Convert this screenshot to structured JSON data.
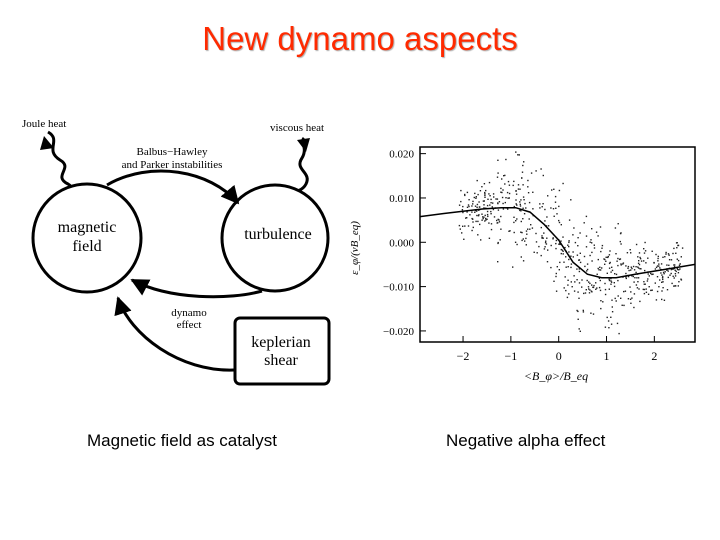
{
  "slide": {
    "title": "New dynamo aspects",
    "caption_left": "Magnetic field as catalyst",
    "caption_right": "Negative alpha effect"
  },
  "diagram": {
    "joule_heat": "Joule heat",
    "viscous_heat": "viscous heat",
    "instab_line1": "Balbus−Hawley",
    "instab_line2": "and Parker instabilities",
    "magnetic_line1": "magnetic",
    "magnetic_line2": "field",
    "turbulence": "turbulence",
    "dynamo_line1": "dynamo",
    "dynamo_line2": "effect",
    "keplerian_line1": "keplerian",
    "keplerian_line2": "shear"
  },
  "chart_data": {
    "type": "scatter",
    "xlabel": "<B_φ>/B_eq",
    "ylabel": "ε_φ/(vB_eq)",
    "xlim": [
      -2.9,
      2.85
    ],
    "ylim": [
      -0.0225,
      0.0215
    ],
    "x_ticks": [
      "−2",
      "−1",
      "0",
      "1",
      "2"
    ],
    "x_tick_values": [
      -2,
      -1,
      0,
      1,
      2
    ],
    "y_ticks": [
      "0.020",
      "0.010",
      "0.000",
      "−0.010",
      "−0.020"
    ],
    "y_tick_values": [
      0.02,
      0.01,
      0.0,
      -0.01,
      -0.02
    ],
    "fit_curve": {
      "x": [
        -2.9,
        -2.4,
        -2.0,
        -1.6,
        -1.2,
        -0.9,
        -0.6,
        -0.3,
        0.0,
        0.3,
        0.6,
        0.9,
        1.2,
        1.6,
        2.0,
        2.4,
        2.85
      ],
      "y": [
        0.0058,
        0.0065,
        0.007,
        0.0075,
        0.0078,
        0.0078,
        0.0068,
        0.004,
        0.0005,
        -0.0045,
        -0.0072,
        -0.008,
        -0.008,
        -0.0072,
        -0.0065,
        -0.0058,
        -0.005
      ]
    }
  }
}
